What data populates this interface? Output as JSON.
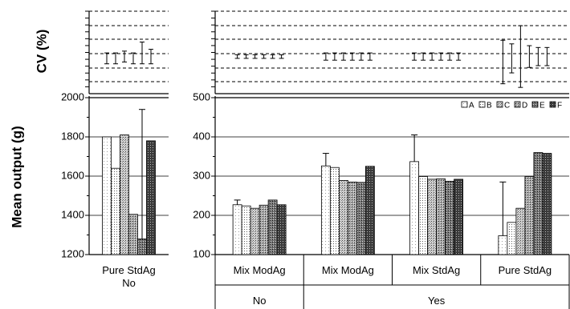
{
  "chart_data": {
    "type": "bar",
    "series_names": [
      "A",
      "B",
      "C",
      "D",
      "E",
      "F"
    ],
    "series_patterns": [
      "dots-light",
      "dots-medium",
      "dots-dense",
      "dots-heavy",
      "dots-dark",
      "dots-darkest"
    ],
    "legend_position": "top-right",
    "cv_panel": {
      "ylabel": "CV (%)",
      "y_tick_labels_shown": false,
      "grid": "dashed"
    },
    "panels": [
      {
        "id": "left",
        "ylabel": "Mean output (g)",
        "ylim": [
          1200,
          2000
        ],
        "yticks": [
          1200,
          1400,
          1600,
          1800,
          2000
        ],
        "categories": [
          {
            "label": "Pure StdAg",
            "group": "No",
            "mean": [
              1800,
              1640,
              1810,
              1405,
              1280,
              1780
            ],
            "err": [
              0,
              0,
              0,
              0,
              660,
              0
            ],
            "cv_center": [
              0.26,
              0.26,
              0.25,
              0.26,
              0.23,
              0.25
            ],
            "cv_half": [
              0.03,
              0.03,
              0.03,
              0.03,
              0.06,
              0.04
            ]
          }
        ]
      },
      {
        "id": "right",
        "ylim": [
          100,
          500
        ],
        "yticks": [
          100,
          200,
          300,
          400,
          500
        ],
        "categories": [
          {
            "label": "Mix ModAg",
            "group": "No",
            "mean": [
              227,
              224,
              218,
              226,
              239,
              227
            ],
            "err": [
              12,
              0,
              0,
              0,
              0,
              0
            ],
            "cv_center": [
              0.25,
              0.25,
              0.25,
              0.25,
              0.25,
              0.25
            ],
            "cv_half": [
              0.01,
              0.01,
              0.01,
              0.01,
              0.01,
              0.01
            ]
          },
          {
            "label": "Mix ModAg",
            "group": "Yes",
            "mean": [
              326,
              322,
              289,
              285,
              284,
              325
            ],
            "err": [
              32,
              0,
              0,
              0,
              0,
              0
            ],
            "cv_center": [
              0.25,
              0.25,
              0.25,
              0.25,
              0.25,
              0.25
            ],
            "cv_half": [
              0.02,
              0.02,
              0.02,
              0.02,
              0.02,
              0.02
            ]
          },
          {
            "label": "Mix StdAg",
            "group": "Yes",
            "mean": [
              337,
              299,
              292,
              293,
              287,
              292
            ],
            "err": [
              68,
              0,
              0,
              0,
              0,
              0
            ],
            "cv_center": [
              0.25,
              0.25,
              0.25,
              0.25,
              0.25,
              0.25
            ],
            "cv_half": [
              0.02,
              0.02,
              0.02,
              0.02,
              0.02,
              0.02
            ]
          },
          {
            "label": "Pure StdAg",
            "group": "Yes",
            "mean": [
              148,
              182,
              218,
              299,
              360,
              358
            ],
            "err": [
              137,
              0,
              0,
              0,
              0,
              0
            ],
            "cv_center": [
              0.28,
              0.26,
              0.25,
              0.25,
              0.25,
              0.25
            ],
            "cv_half": [
              0.12,
              0.08,
              0.17,
              0.06,
              0.05,
              0.05
            ]
          }
        ],
        "group_labels": [
          "No",
          "Yes"
        ]
      }
    ]
  }
}
